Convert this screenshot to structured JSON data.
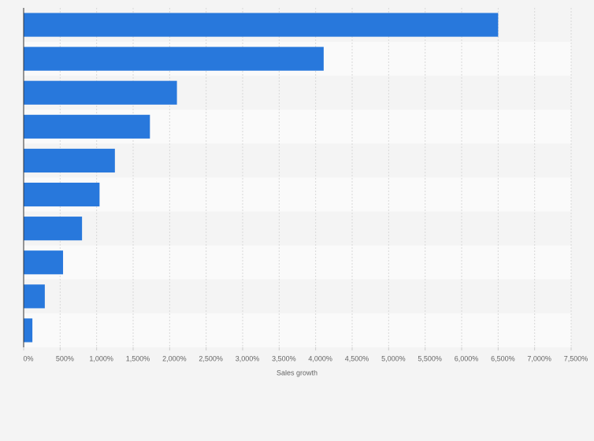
{
  "chart_data": {
    "type": "bar",
    "orientation": "horizontal",
    "x_label": "Sales growth",
    "categories": [
      null,
      null,
      null,
      null,
      null,
      null,
      null,
      null,
      null,
      null
    ],
    "values": [
      6500,
      4110,
      2100,
      1730,
      1250,
      1040,
      800,
      540,
      290,
      120
    ],
    "color": "#2878dc",
    "xlim": [
      0,
      7500
    ],
    "xticks": [
      {
        "value": 0,
        "label": "0%"
      },
      {
        "value": 500,
        "label": "500%"
      },
      {
        "value": 1000,
        "label": "1,000%"
      },
      {
        "value": 1500,
        "label": "1,500%"
      },
      {
        "value": 2000,
        "label": "2,000%"
      },
      {
        "value": 2500,
        "label": "2,500%"
      },
      {
        "value": 3000,
        "label": "3,000%"
      },
      {
        "value": 3500,
        "label": "3,500%"
      },
      {
        "value": 4000,
        "label": "4,000%"
      },
      {
        "value": 4500,
        "label": "4,500%"
      },
      {
        "value": 5000,
        "label": "5,000%"
      },
      {
        "value": 5500,
        "label": "5,500%"
      },
      {
        "value": 6000,
        "label": "6,000%"
      },
      {
        "value": 6500,
        "label": "6,500%"
      },
      {
        "value": 7000,
        "label": "7,000%"
      },
      {
        "value": 7500,
        "label": "7,500%"
      }
    ],
    "grid": true
  }
}
